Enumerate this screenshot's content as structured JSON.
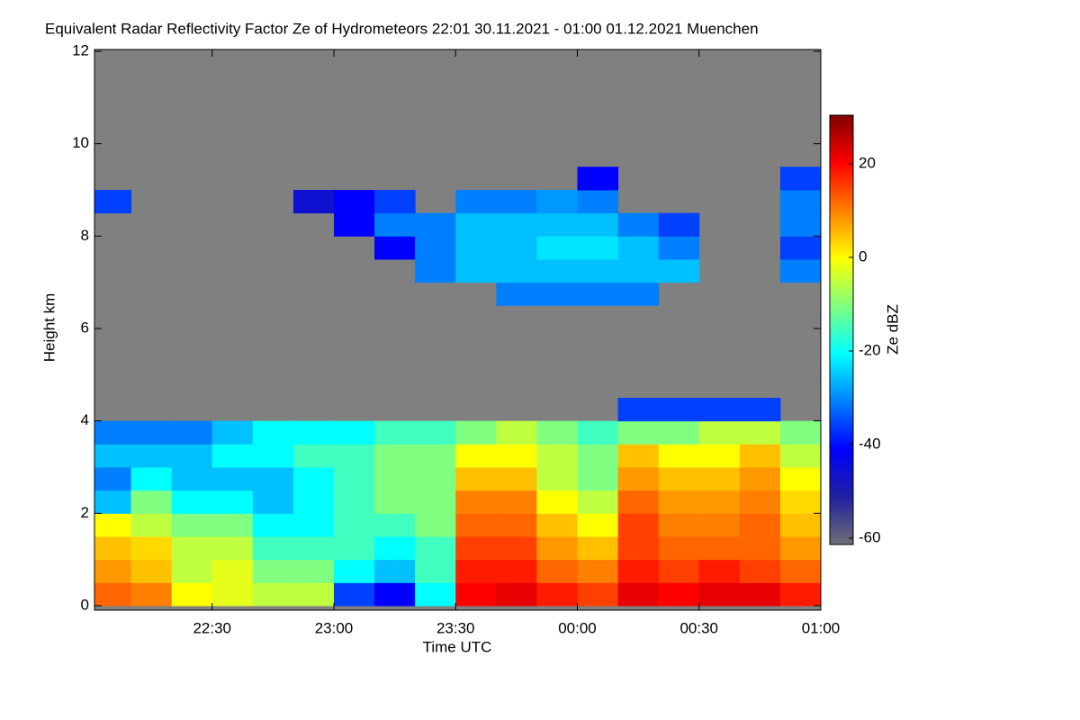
{
  "chart_data": {
    "type": "heatmap",
    "title": "Equivalent Radar Reflectivity Factor Ze of Hydrometeors   22:01 30.11.2021 - 01:00 01.12.2021 Muenchen",
    "x_label": "Time UTC",
    "y_label": "Height km",
    "colorbar_label": "Ze dBZ",
    "x": [
      "22:01",
      "22:10",
      "22:20",
      "22:30",
      "22:40",
      "22:50",
      "23:00",
      "23:10",
      "23:20",
      "23:30",
      "23:40",
      "23:50",
      "00:00",
      "00:10",
      "00:20",
      "00:30",
      "00:40",
      "00:50",
      "01:00"
    ],
    "y": [
      0,
      0.5,
      1,
      1.5,
      2,
      2.5,
      3,
      3.5,
      4,
      4.5,
      5,
      5.5,
      6,
      6.5,
      7,
      7.5,
      8,
      8.5,
      9,
      9.5,
      10
    ],
    "z": [
      [
        12,
        10,
        0,
        -2,
        -5,
        -5,
        -35,
        -40,
        -20,
        20,
        22,
        18,
        15,
        22,
        20,
        22,
        22,
        18
      ],
      [
        8,
        5,
        -5,
        -2,
        -10,
        -10,
        -20,
        -25,
        -15,
        18,
        18,
        12,
        10,
        18,
        15,
        18,
        15,
        12
      ],
      [
        5,
        3,
        -5,
        -5,
        -15,
        -15,
        -15,
        -20,
        -15,
        15,
        15,
        8,
        5,
        15,
        12,
        12,
        12,
        8
      ],
      [
        0,
        -5,
        -10,
        -10,
        -20,
        -20,
        -15,
        -15,
        -10,
        12,
        12,
        5,
        0,
        15,
        10,
        10,
        12,
        5
      ],
      [
        -25,
        -10,
        -20,
        -20,
        -25,
        -20,
        -15,
        -10,
        -10,
        10,
        10,
        0,
        -5,
        12,
        8,
        8,
        10,
        3
      ],
      [
        -30,
        -20,
        -25,
        -25,
        -25,
        -20,
        -15,
        -10,
        -10,
        5,
        5,
        -5,
        -10,
        8,
        5,
        5,
        8,
        0
      ],
      [
        -25,
        -25,
        -25,
        -20,
        -20,
        -15,
        -15,
        -10,
        -10,
        0,
        0,
        -5,
        -10,
        5,
        0,
        0,
        5,
        -5
      ],
      [
        -30,
        -30,
        -30,
        -25,
        -20,
        -20,
        -20,
        -15,
        -15,
        -10,
        -5,
        -10,
        -15,
        -10,
        -10,
        -5,
        -5,
        -10
      ],
      [
        null,
        null,
        null,
        null,
        null,
        null,
        null,
        null,
        null,
        null,
        null,
        null,
        null,
        -35,
        -35,
        -35,
        -35,
        null
      ],
      [
        null,
        null,
        null,
        null,
        null,
        null,
        null,
        null,
        null,
        null,
        null,
        null,
        null,
        null,
        null,
        null,
        null,
        null
      ],
      [
        null,
        null,
        null,
        null,
        null,
        null,
        null,
        null,
        null,
        null,
        null,
        null,
        null,
        null,
        null,
        null,
        null,
        null
      ],
      [
        null,
        null,
        null,
        null,
        null,
        null,
        null,
        null,
        null,
        null,
        null,
        null,
        null,
        null,
        null,
        null,
        null,
        null
      ],
      [
        null,
        null,
        null,
        null,
        null,
        null,
        null,
        null,
        null,
        null,
        null,
        null,
        null,
        null,
        null,
        null,
        null,
        null
      ],
      [
        null,
        null,
        null,
        null,
        null,
        null,
        null,
        null,
        null,
        null,
        -30,
        -30,
        -30,
        -30,
        null,
        null,
        null,
        null
      ],
      [
        null,
        null,
        null,
        null,
        null,
        null,
        null,
        null,
        -30,
        -25,
        -25,
        -25,
        -25,
        -25,
        -25,
        null,
        null,
        -30
      ],
      [
        null,
        null,
        null,
        null,
        null,
        null,
        null,
        -40,
        -30,
        -25,
        -25,
        -22,
        -22,
        -25,
        -30,
        null,
        null,
        -35
      ],
      [
        null,
        null,
        null,
        null,
        null,
        null,
        -40,
        -30,
        -30,
        -25,
        -25,
        -25,
        -25,
        -30,
        -35,
        null,
        null,
        -30
      ],
      [
        -35,
        null,
        null,
        null,
        null,
        -45,
        -40,
        -35,
        null,
        -30,
        -30,
        -28,
        -30,
        null,
        null,
        null,
        null,
        -30
      ],
      [
        null,
        null,
        null,
        null,
        null,
        null,
        null,
        null,
        null,
        null,
        null,
        null,
        -40,
        null,
        null,
        null,
        null,
        -35
      ],
      [
        null,
        null,
        null,
        null,
        null,
        null,
        null,
        null,
        null,
        null,
        null,
        null,
        null,
        null,
        null,
        null,
        null,
        null
      ]
    ],
    "xlim": [
      "22:01",
      "01:00"
    ],
    "xticks": [
      "22:30",
      "23:00",
      "23:30",
      "00:00",
      "00:30",
      "01:00"
    ],
    "ylim": [
      0,
      12
    ],
    "yticks": [
      0,
      2,
      4,
      6,
      8,
      10,
      12
    ],
    "clim": [
      -60,
      30
    ],
    "cticks": [
      -60,
      -40,
      -20,
      0,
      20
    ],
    "colormap": [
      "#6e6e78",
      "#2020a0",
      "#0000ff",
      "#0080ff",
      "#00ffff",
      "#80ff80",
      "#ffff00",
      "#ff8000",
      "#ff0000",
      "#800000"
    ],
    "background": "#808080"
  }
}
